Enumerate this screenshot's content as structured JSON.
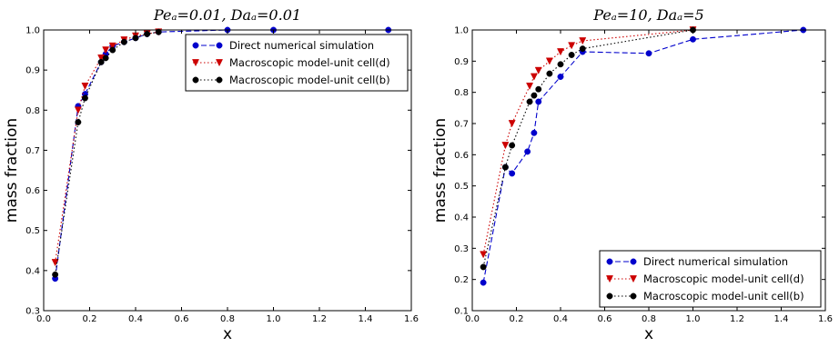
{
  "chart_data": [
    {
      "type": "line",
      "title": "Pe_A = 0.01, Da_A = 0.01",
      "title_display": "Peₐ=0.01, Daₐ=0.01",
      "xlabel": "x",
      "ylabel": "mass fraction",
      "xlim": [
        0.0,
        1.6
      ],
      "ylim": [
        0.3,
        1.0
      ],
      "x_ticks": [
        "0.0",
        "0.2",
        "0.4",
        "0.6",
        "0.8",
        "1.0",
        "1.2",
        "1.4",
        "1.6"
      ],
      "y_ticks": [
        "0.3",
        "0.4",
        "0.5",
        "0.6",
        "0.7",
        "0.8",
        "0.9",
        "1.0"
      ],
      "grid": false,
      "legend_position": "top-right",
      "series": [
        {
          "name": "Direct numerical simulation",
          "color": "#0000cc",
          "marker": "circle",
          "line_style": "dashed",
          "x": [
            0.05,
            0.15,
            0.18,
            0.25,
            0.27,
            0.3,
            0.35,
            0.4,
            0.45,
            0.5,
            0.8,
            1.0,
            1.5
          ],
          "y": [
            0.38,
            0.81,
            0.84,
            0.92,
            0.94,
            0.96,
            0.97,
            0.98,
            0.99,
            0.995,
            1.0,
            1.0,
            1.0
          ]
        },
        {
          "name": "Macroscopic model-unit cell(d)",
          "color": "#cc0000",
          "marker": "triangle-down",
          "line_style": "dotted",
          "x": [
            0.05,
            0.15,
            0.18,
            0.25,
            0.27,
            0.3,
            0.35,
            0.4,
            0.45,
            0.5
          ],
          "y": [
            0.42,
            0.8,
            0.86,
            0.93,
            0.95,
            0.96,
            0.975,
            0.985,
            0.99,
            0.995
          ]
        },
        {
          "name": "Macroscopic model-unit cell(b)",
          "color": "#000000",
          "marker": "circle",
          "line_style": "dotted",
          "x": [
            0.05,
            0.15,
            0.18,
            0.25,
            0.27,
            0.3,
            0.35,
            0.4,
            0.45,
            0.5
          ],
          "y": [
            0.39,
            0.77,
            0.83,
            0.92,
            0.93,
            0.95,
            0.97,
            0.98,
            0.99,
            0.995
          ]
        }
      ]
    },
    {
      "type": "line",
      "title": "Pe_A = 10, Da_A = 5",
      "title_display": "Peₐ=10, Daₐ=5",
      "xlabel": "x",
      "ylabel": "mass fraction",
      "xlim": [
        0.0,
        1.6
      ],
      "ylim": [
        0.1,
        1.0
      ],
      "x_ticks": [
        "0.0",
        "0.2",
        "0.4",
        "0.6",
        "0.8",
        "1.0",
        "1.2",
        "1.4",
        "1.6"
      ],
      "y_ticks": [
        "0.1",
        "0.2",
        "0.3",
        "0.4",
        "0.5",
        "0.6",
        "0.7",
        "0.8",
        "0.9",
        "1.0"
      ],
      "grid": false,
      "legend_position": "bottom-right",
      "series": [
        {
          "name": "Direct numerical simulation",
          "color": "#0000cc",
          "marker": "circle",
          "line_style": "dashed",
          "x": [
            0.05,
            0.15,
            0.18,
            0.25,
            0.28,
            0.3,
            0.4,
            0.5,
            0.8,
            1.0,
            1.5
          ],
          "y": [
            0.19,
            0.56,
            0.54,
            0.61,
            0.67,
            0.77,
            0.85,
            0.93,
            0.925,
            0.97,
            1.0
          ]
        },
        {
          "name": "Macroscopic model-unit cell(d)",
          "color": "#cc0000",
          "marker": "triangle-down",
          "line_style": "dotted",
          "x": [
            0.05,
            0.15,
            0.18,
            0.26,
            0.28,
            0.3,
            0.35,
            0.4,
            0.45,
            0.5,
            1.0
          ],
          "y": [
            0.28,
            0.63,
            0.7,
            0.82,
            0.85,
            0.87,
            0.9,
            0.93,
            0.95,
            0.965,
            1.0
          ]
        },
        {
          "name": "Macroscopic model-unit cell(b)",
          "color": "#000000",
          "marker": "circle",
          "line_style": "dotted",
          "x": [
            0.05,
            0.15,
            0.18,
            0.26,
            0.28,
            0.3,
            0.35,
            0.4,
            0.45,
            0.5,
            1.0
          ],
          "y": [
            0.24,
            0.56,
            0.63,
            0.77,
            0.79,
            0.81,
            0.86,
            0.89,
            0.92,
            0.94,
            1.0
          ]
        }
      ]
    }
  ]
}
